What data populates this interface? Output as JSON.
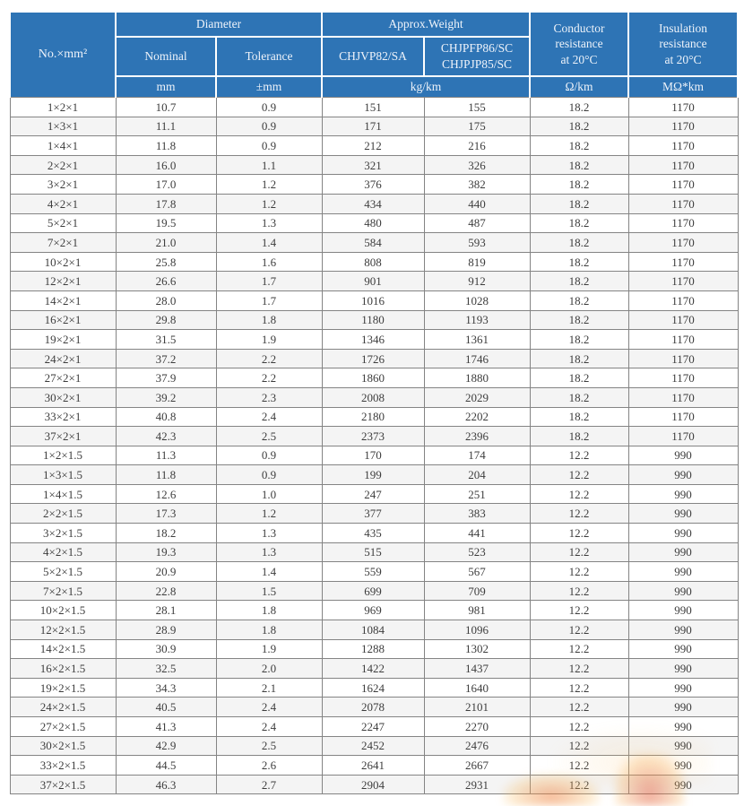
{
  "colors": {
    "header_bg": "#2e74b5",
    "header_text": "#eef3fa",
    "grid_border": "#848484",
    "row_bg": "#ffffff",
    "row_alt_bg": "#f4f4f4",
    "data_text": "#3d3d3d",
    "watermark_orange": "#e8793a"
  },
  "table": {
    "header": {
      "no_col": "No.×mm²",
      "diameter_group": "Diameter",
      "weight_group": "Approx.Weight",
      "nominal": "Nominal",
      "tolerance": "Tolerance",
      "weight_col1": "CHJVP82/SA",
      "weight_col2_line1": "CHJPFP86/SC",
      "weight_col2_line2": "CHJPJP85/SC",
      "conductor": {
        "line1": "Conductor",
        "line2": "resistance",
        "line3": "at 20°C"
      },
      "insulation": {
        "line1": "Insulation",
        "line2": "resistance",
        "line3": "at 20°C"
      },
      "units": {
        "mm": "mm",
        "tolerance": "±mm",
        "weight": "kg/km",
        "conductor": "Ω/km",
        "insulation": "MΩ*km"
      }
    },
    "rows": [
      [
        "1×2×1",
        "10.7",
        "0.9",
        "151",
        "155",
        "18.2",
        "1170"
      ],
      [
        "1×3×1",
        "11.1",
        "0.9",
        "171",
        "175",
        "18.2",
        "1170"
      ],
      [
        "1×4×1",
        "11.8",
        "0.9",
        "212",
        "216",
        "18.2",
        "1170"
      ],
      [
        "2×2×1",
        "16.0",
        "1.1",
        "321",
        "326",
        "18.2",
        "1170"
      ],
      [
        "3×2×1",
        "17.0",
        "1.2",
        "376",
        "382",
        "18.2",
        "1170"
      ],
      [
        "4×2×1",
        "17.8",
        "1.2",
        "434",
        "440",
        "18.2",
        "1170"
      ],
      [
        "5×2×1",
        "19.5",
        "1.3",
        "480",
        "487",
        "18.2",
        "1170"
      ],
      [
        "7×2×1",
        "21.0",
        "1.4",
        "584",
        "593",
        "18.2",
        "1170"
      ],
      [
        "10×2×1",
        "25.8",
        "1.6",
        "808",
        "819",
        "18.2",
        "1170"
      ],
      [
        "12×2×1",
        "26.6",
        "1.7",
        "901",
        "912",
        "18.2",
        "1170"
      ],
      [
        "14×2×1",
        "28.0",
        "1.7",
        "1016",
        "1028",
        "18.2",
        "1170"
      ],
      [
        "16×2×1",
        "29.8",
        "1.8",
        "1180",
        "1193",
        "18.2",
        "1170"
      ],
      [
        "19×2×1",
        "31.5",
        "1.9",
        "1346",
        "1361",
        "18.2",
        "1170"
      ],
      [
        "24×2×1",
        "37.2",
        "2.2",
        "1726",
        "1746",
        "18.2",
        "1170"
      ],
      [
        "27×2×1",
        "37.9",
        "2.2",
        "1860",
        "1880",
        "18.2",
        "1170"
      ],
      [
        "30×2×1",
        "39.2",
        "2.3",
        "2008",
        "2029",
        "18.2",
        "1170"
      ],
      [
        "33×2×1",
        "40.8",
        "2.4",
        "2180",
        "2202",
        "18.2",
        "1170"
      ],
      [
        "37×2×1",
        "42.3",
        "2.5",
        "2373",
        "2396",
        "18.2",
        "1170"
      ],
      [
        "1×2×1.5",
        "11.3",
        "0.9",
        "170",
        "174",
        "12.2",
        "990"
      ],
      [
        "1×3×1.5",
        "11.8",
        "0.9",
        "199",
        "204",
        "12.2",
        "990"
      ],
      [
        "1×4×1.5",
        "12.6",
        "1.0",
        "247",
        "251",
        "12.2",
        "990"
      ],
      [
        "2×2×1.5",
        "17.3",
        "1.2",
        "377",
        "383",
        "12.2",
        "990"
      ],
      [
        "3×2×1.5",
        "18.2",
        "1.3",
        "435",
        "441",
        "12.2",
        "990"
      ],
      [
        "4×2×1.5",
        "19.3",
        "1.3",
        "515",
        "523",
        "12.2",
        "990"
      ],
      [
        "5×2×1.5",
        "20.9",
        "1.4",
        "559",
        "567",
        "12.2",
        "990"
      ],
      [
        "7×2×1.5",
        "22.8",
        "1.5",
        "699",
        "709",
        "12.2",
        "990"
      ],
      [
        "10×2×1.5",
        "28.1",
        "1.8",
        "969",
        "981",
        "12.2",
        "990"
      ],
      [
        "12×2×1.5",
        "28.9",
        "1.8",
        "1084",
        "1096",
        "12.2",
        "990"
      ],
      [
        "14×2×1.5",
        "30.9",
        "1.9",
        "1288",
        "1302",
        "12.2",
        "990"
      ],
      [
        "16×2×1.5",
        "32.5",
        "2.0",
        "1422",
        "1437",
        "12.2",
        "990"
      ],
      [
        "19×2×1.5",
        "34.3",
        "2.1",
        "1624",
        "1640",
        "12.2",
        "990"
      ],
      [
        "24×2×1.5",
        "40.5",
        "2.4",
        "2078",
        "2101",
        "12.2",
        "990"
      ],
      [
        "27×2×1.5",
        "41.3",
        "2.4",
        "2247",
        "2270",
        "12.2",
        "990"
      ],
      [
        "30×2×1.5",
        "42.9",
        "2.5",
        "2452",
        "2476",
        "12.2",
        "990"
      ],
      [
        "33×2×1.5",
        "44.5",
        "2.6",
        "2641",
        "2667",
        "12.2",
        "990"
      ],
      [
        "37×2×1.5",
        "46.3",
        "2.7",
        "2904",
        "2931",
        "12.2",
        "990"
      ]
    ]
  }
}
